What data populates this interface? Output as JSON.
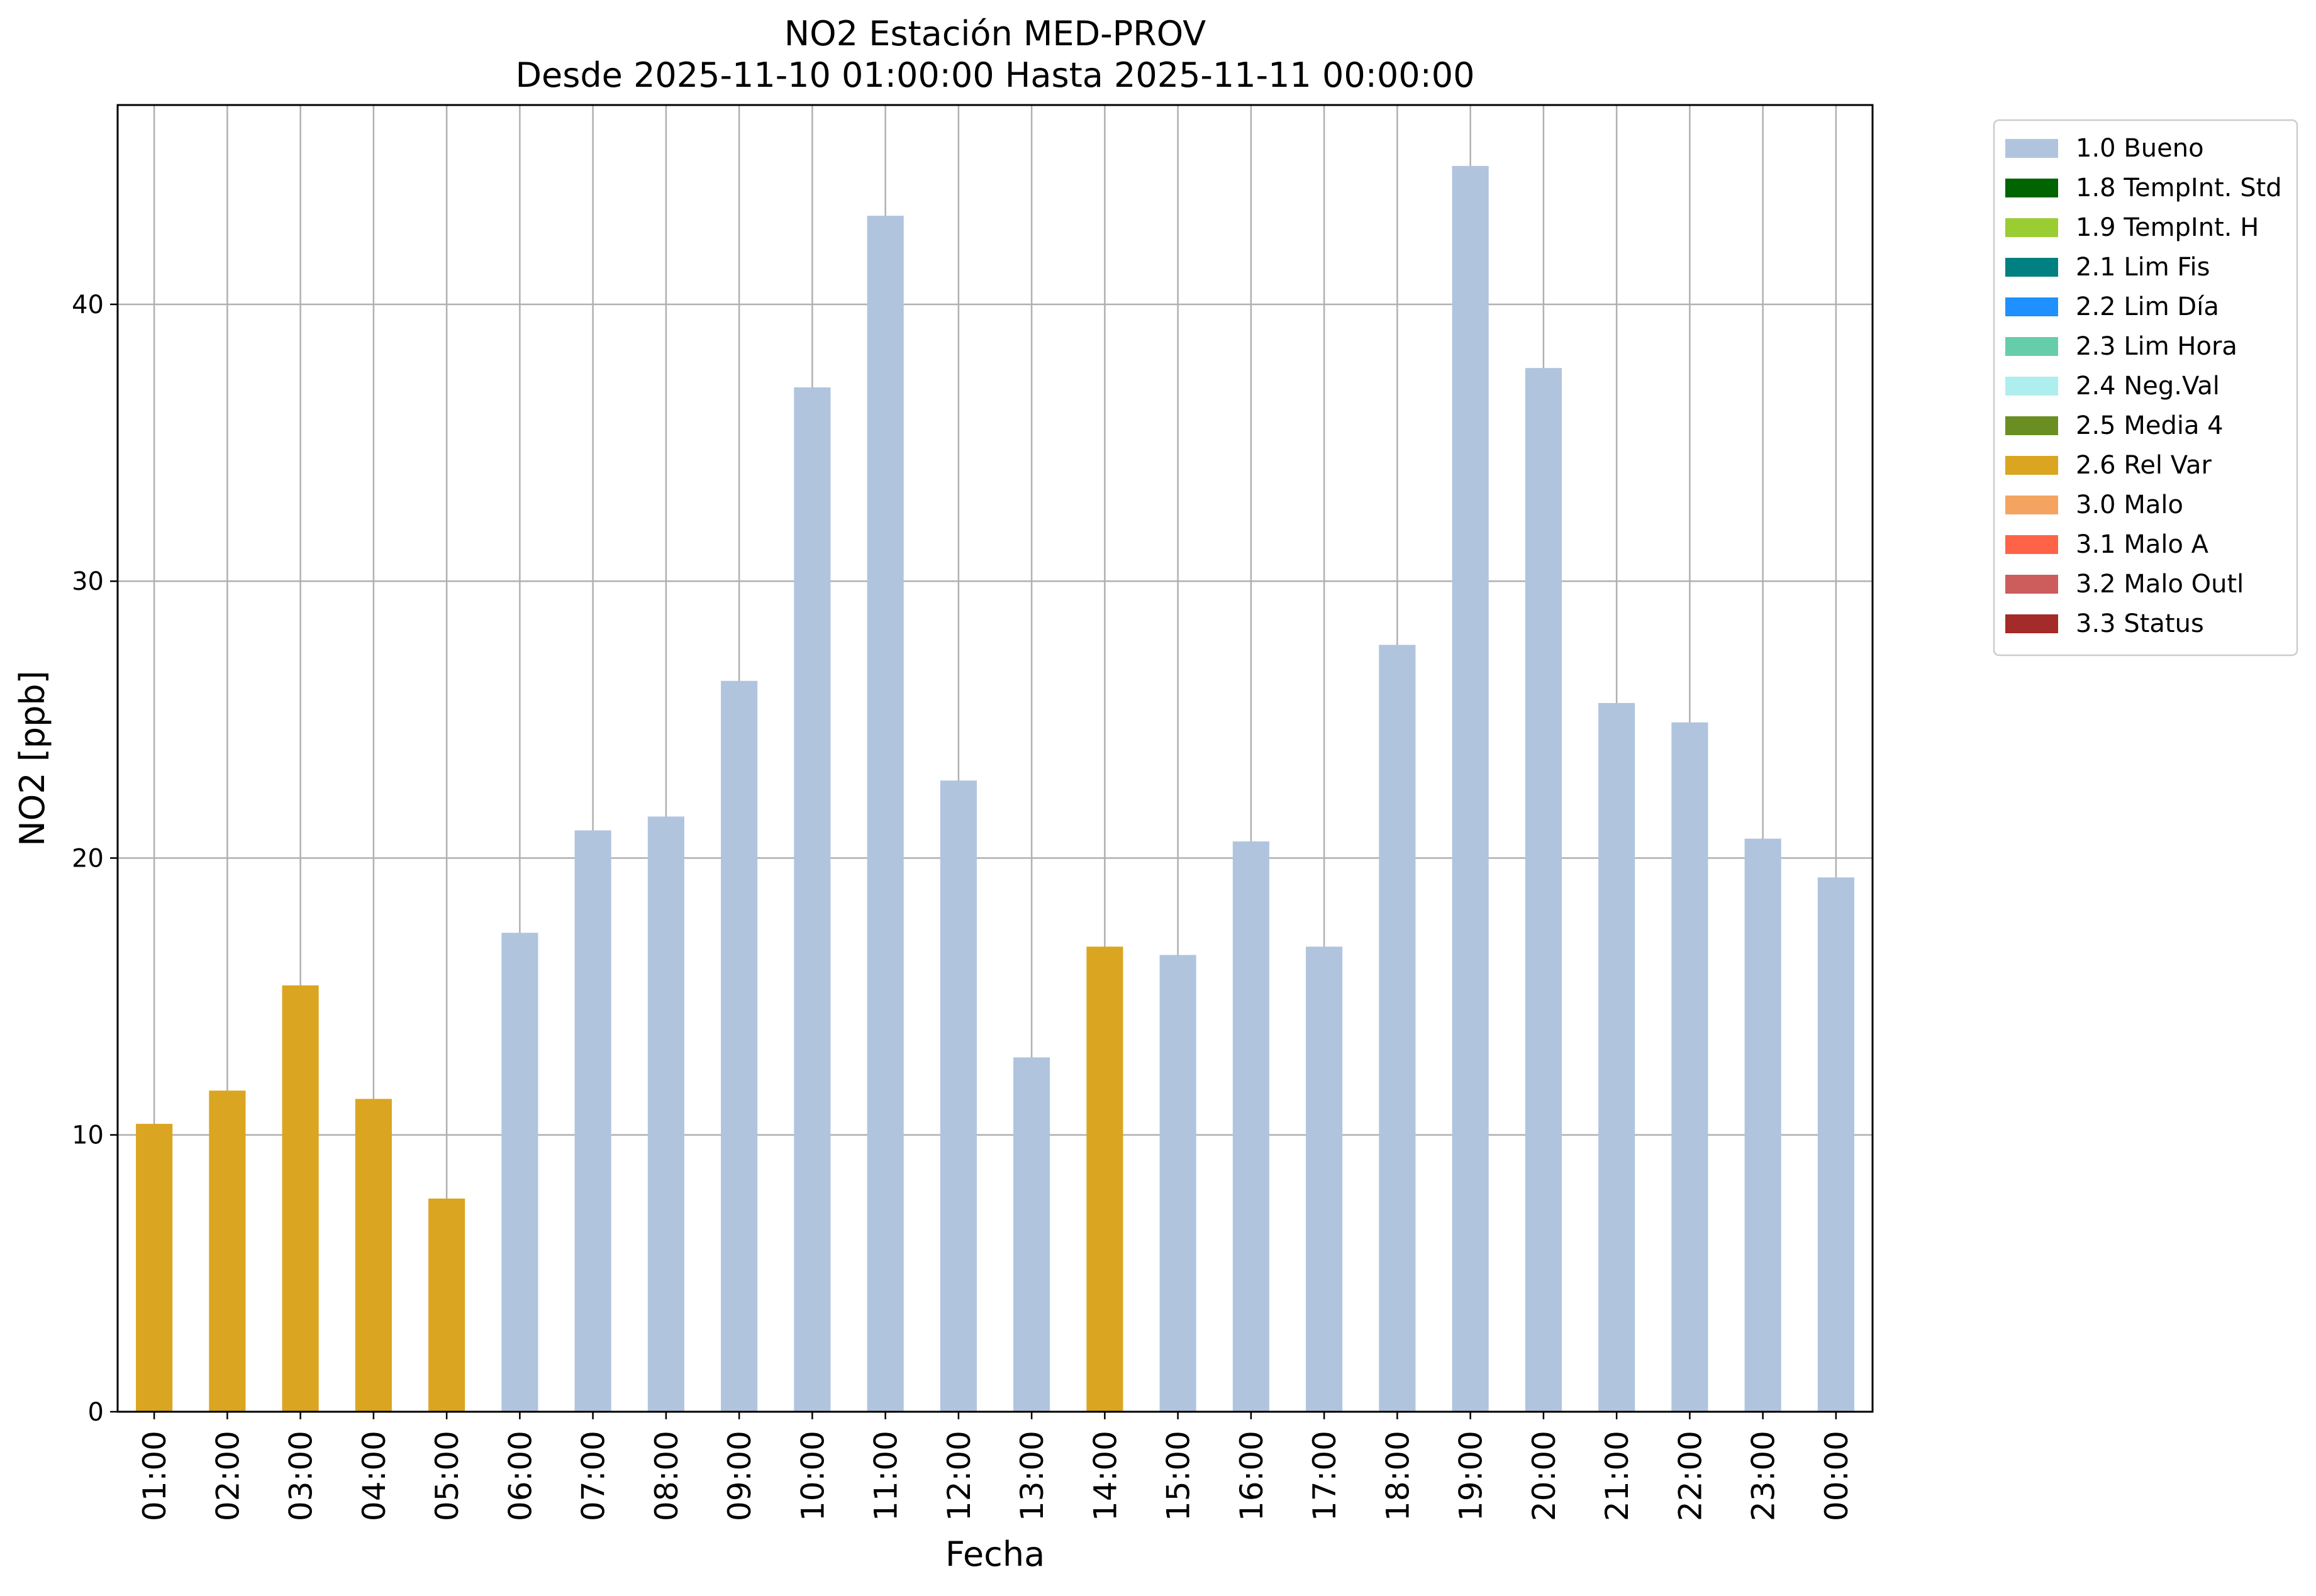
{
  "chart_data": {
    "type": "bar",
    "title": "NO2 Estación MED-PROV",
    "subtitle": "Desde 2025-11-10 01:00:00 Hasta 2025-11-11 00:00:00",
    "xlabel": "Fecha",
    "ylabel": "NO2 [ppb]",
    "ylim": [
      0,
      47.2
    ],
    "yticks": [
      0,
      10,
      20,
      30,
      40
    ],
    "grid": true,
    "legend_position": "outside right, top",
    "categories": [
      "01:00",
      "02:00",
      "03:00",
      "04:00",
      "05:00",
      "06:00",
      "07:00",
      "08:00",
      "09:00",
      "10:00",
      "11:00",
      "12:00",
      "13:00",
      "14:00",
      "15:00",
      "16:00",
      "17:00",
      "18:00",
      "19:00",
      "20:00",
      "21:00",
      "22:00",
      "23:00",
      "00:00"
    ],
    "values": [
      10.4,
      11.6,
      15.4,
      11.3,
      7.7,
      17.3,
      21.0,
      21.5,
      26.4,
      37.0,
      43.2,
      22.8,
      12.8,
      16.8,
      16.5,
      20.6,
      16.8,
      27.7,
      45.0,
      37.7,
      25.6,
      24.9,
      20.7,
      19.3
    ],
    "flags": [
      "2.6 Rel Var",
      "2.6 Rel Var",
      "2.6 Rel Var",
      "2.6 Rel Var",
      "2.6 Rel Var",
      "1.0 Bueno",
      "1.0 Bueno",
      "1.0 Bueno",
      "1.0 Bueno",
      "1.0 Bueno",
      "1.0 Bueno",
      "1.0 Bueno",
      "1.0 Bueno",
      "2.6 Rel Var",
      "1.0 Bueno",
      "1.0 Bueno",
      "1.0 Bueno",
      "1.0 Bueno",
      "1.0 Bueno",
      "1.0 Bueno",
      "1.0 Bueno",
      "1.0 Bueno",
      "1.0 Bueno",
      "1.0 Bueno"
    ],
    "legend": [
      {
        "label": "1.0 Bueno",
        "color": "#b0c4de"
      },
      {
        "label": "1.8 TempInt. Std",
        "color": "#006400"
      },
      {
        "label": "1.9 TempInt. H",
        "color": "#9acd32"
      },
      {
        "label": "2.1 Lim Fis",
        "color": "#008080"
      },
      {
        "label": "2.2 Lim Día",
        "color": "#1e90ff"
      },
      {
        "label": "2.3 Lim Hora",
        "color": "#66cdaa"
      },
      {
        "label": "2.4 Neg.Val",
        "color": "#afeeee"
      },
      {
        "label": "2.5 Media 4",
        "color": "#6b8e23"
      },
      {
        "label": "2.6 Rel Var",
        "color": "#daa520"
      },
      {
        "label": "3.0 Malo",
        "color": "#f4a460"
      },
      {
        "label": "3.1 Malo A",
        "color": "#ff6347"
      },
      {
        "label": "3.2 Malo Outl",
        "color": "#cd5c5c"
      },
      {
        "label": "3.3 Status",
        "color": "#a52a2a"
      }
    ]
  }
}
